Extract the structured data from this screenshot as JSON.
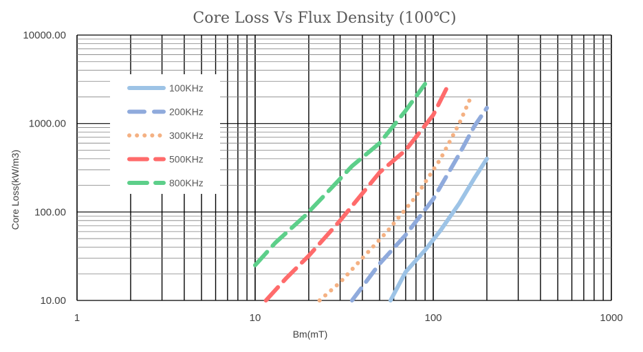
{
  "chart_data": {
    "type": "line",
    "title": "Core Loss Vs Flux Density (100℃)",
    "xlabel": "Bm(mT)",
    "ylabel": "Core Loss(kW/m3)",
    "x_scale": "log",
    "y_scale": "log",
    "xlim": [
      1,
      1000
    ],
    "ylim": [
      10,
      10000
    ],
    "x_ticks": [
      "1",
      "10",
      "100",
      "1000"
    ],
    "y_ticks": [
      "10.00",
      "100.00",
      "1000.00",
      "10000.00"
    ],
    "grid": true,
    "legend_position": "upper-left",
    "series": [
      {
        "name": "100KHz",
        "color": "#9DC3E6",
        "dash": "solid",
        "x": [
          57.6,
          70,
          90,
          110,
          140,
          170,
          200
        ],
        "y": [
          10,
          21,
          37,
          62,
          125,
          240,
          400
        ]
      },
      {
        "name": "200KHz",
        "color": "#8FAADC",
        "dash": "dash",
        "x": [
          35,
          50,
          70,
          100,
          140,
          170,
          200
        ],
        "y": [
          10,
          26,
          55,
          140,
          450,
          930,
          1500
        ]
      },
      {
        "name": "300KHz",
        "color": "#F4B183",
        "dash": "dot",
        "x": [
          23,
          30,
          40,
          55,
          80,
          110,
          140,
          160
        ],
        "y": [
          10,
          16,
          30,
          60,
          150,
          400,
          1000,
          1850
        ]
      },
      {
        "name": "500KHz",
        "color": "#FF6B6B",
        "dash": "longdash",
        "x": [
          11.5,
          15,
          20,
          30,
          50,
          70,
          100,
          120
        ],
        "y": [
          10,
          18,
          32,
          80,
          280,
          500,
          1250,
          2600
        ]
      },
      {
        "name": "800KHz",
        "color": "#5DCF8A",
        "dash": "longdash",
        "x": [
          10,
          13,
          19,
          26,
          35,
          50,
          70,
          90
        ],
        "y": [
          25,
          45,
          90,
          175,
          330,
          600,
          1400,
          2800
        ]
      }
    ]
  }
}
